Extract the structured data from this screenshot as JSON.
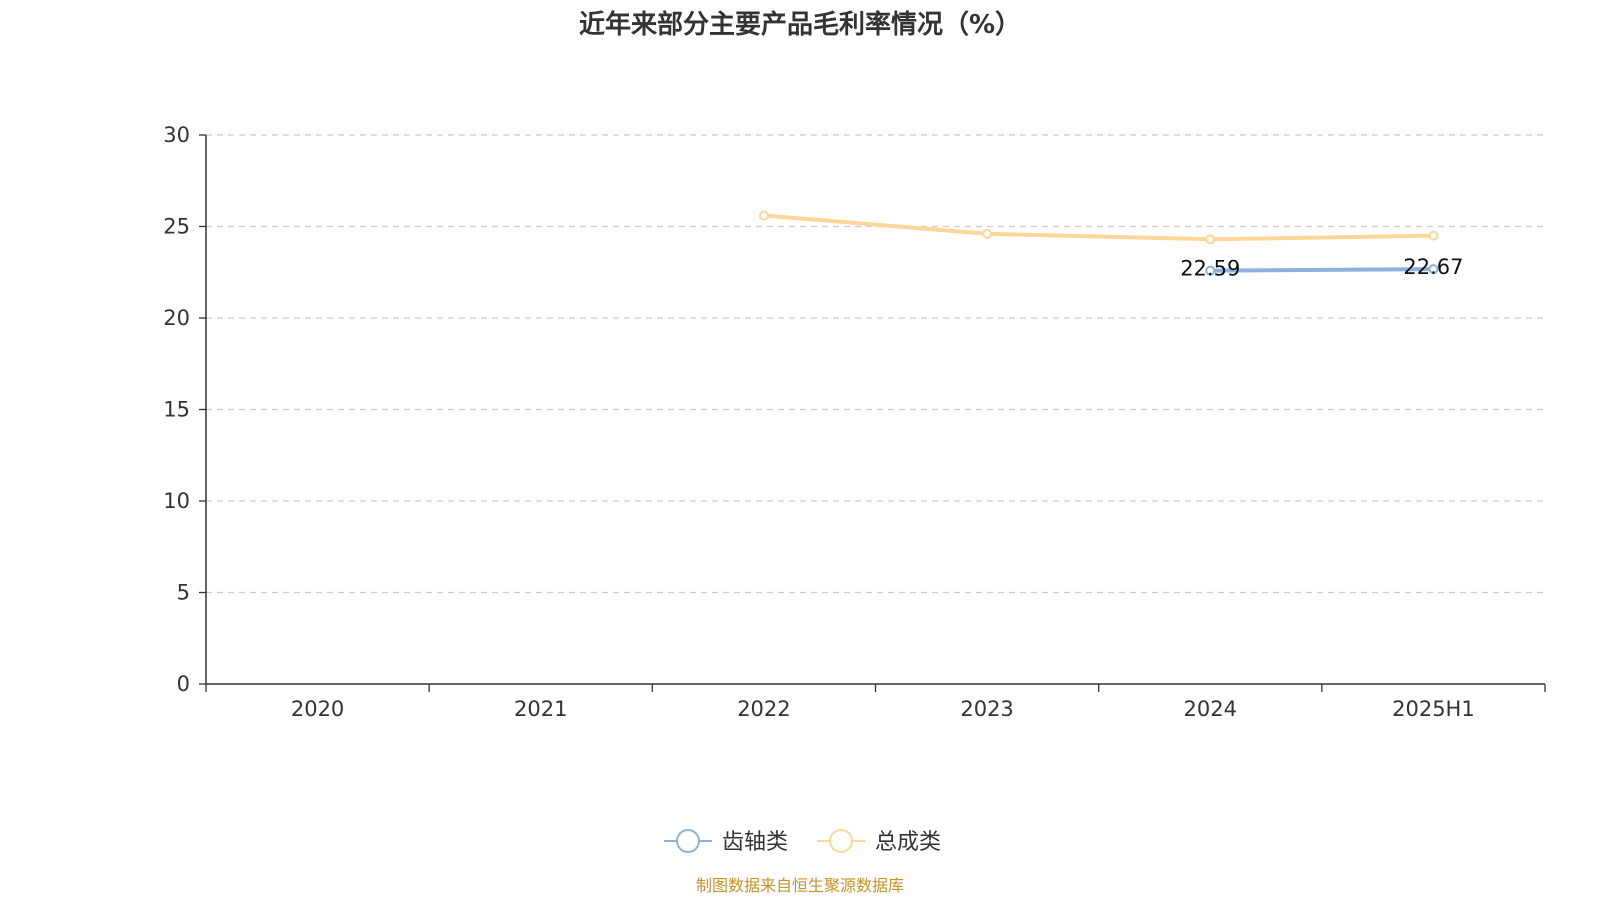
{
  "chart_data": {
    "type": "line",
    "title": "近年来部分主要产品毛利率情况（%）",
    "categories": [
      "2020",
      "2021",
      "2022",
      "2023",
      "2024",
      "2025H1"
    ],
    "ylim": [
      0,
      30
    ],
    "yticks": [
      0,
      5,
      10,
      15,
      20,
      25,
      30
    ],
    "grid": true,
    "legend_position": "bottom-center",
    "series": [
      {
        "name": "齿轴类",
        "color": "#8eb0dc",
        "values": [
          null,
          null,
          null,
          null,
          22.59,
          22.67
        ],
        "labels": [
          null,
          null,
          null,
          null,
          "22.59",
          "22.67"
        ]
      },
      {
        "name": "总成类",
        "color": "#fbd899",
        "values": [
          null,
          null,
          25.6,
          24.6,
          24.3,
          24.5
        ],
        "labels": [
          null,
          null,
          null,
          null,
          null,
          null
        ]
      }
    ]
  },
  "source_note": "制图数据来自恒生聚源数据库"
}
